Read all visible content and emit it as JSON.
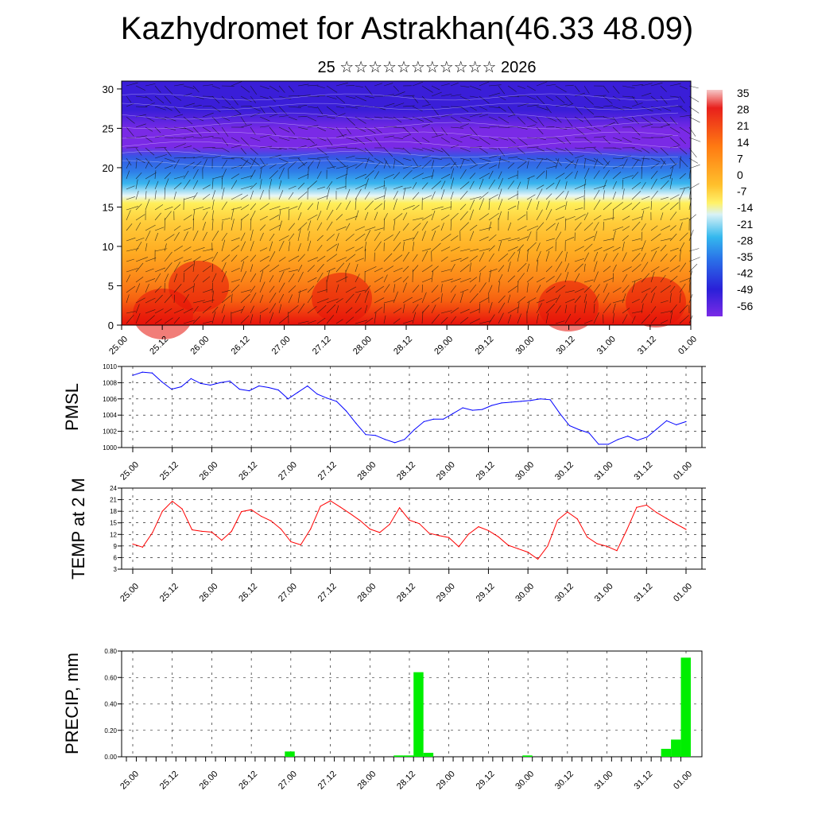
{
  "title": "Kazhydromet for Astrakhan(46.33 48.09)",
  "subtitle": "25 ☆☆☆☆☆☆☆☆☆☆☆ 2026",
  "time_labels": [
    "25.00",
    "25.12",
    "26.00",
    "26.12",
    "27.00",
    "27.12",
    "28.00",
    "28.12",
    "29.00",
    "29.12",
    "30.00",
    "30.12",
    "31.00",
    "31.12",
    "01.00"
  ],
  "chart_data": [
    {
      "type": "heatmap",
      "name": "temperature-height-section",
      "y_ticks": [
        "0",
        "5",
        "10",
        "15",
        "20",
        "25",
        "30"
      ],
      "ylim": [
        0,
        31
      ],
      "colorbar_labels": [
        "35",
        "28",
        "21",
        "14",
        "7",
        "0",
        "-7",
        "-14",
        "-21",
        "-28",
        "-35",
        "-42",
        "-49",
        "-56"
      ],
      "colors": {
        "top": "#3a1ed8",
        "band25": "#7a2ae6",
        "band20": "#2f7de8",
        "band15": "#ffef5a",
        "band10": "#ffac22",
        "band5": "#f66010",
        "bottom": "#e8100c",
        "wind": "#111111"
      }
    },
    {
      "type": "line",
      "name": "pmsl",
      "ylabel": "PMSL",
      "ylim": [
        1000,
        1010
      ],
      "y_ticks": [
        "1000",
        "1002",
        "1004",
        "1006",
        "1008",
        "1010"
      ],
      "color": "#0000ff",
      "values": [
        1008.9,
        1009.3,
        1009.2,
        1008.1,
        1007.2,
        1007.5,
        1008.5,
        1007.9,
        1007.7,
        1008.0,
        1008.2,
        1007.2,
        1007.0,
        1007.6,
        1007.4,
        1007.1,
        1006.0,
        1006.8,
        1007.6,
        1006.6,
        1006.1,
        1005.7,
        1004.5,
        1003.0,
        1001.6,
        1001.5,
        1001.0,
        1000.6,
        1001.0,
        1002.2,
        1003.2,
        1003.5,
        1003.5,
        1004.2,
        1004.9,
        1004.6,
        1004.7,
        1005.2,
        1005.5,
        1005.6,
        1005.7,
        1005.8,
        1006.0,
        1005.9,
        1004.2,
        1002.7,
        1002.2,
        1001.8,
        1000.4,
        1000.4,
        1001.0,
        1001.4,
        1000.9,
        1001.3,
        1002.3,
        1003.3,
        1002.8,
        1003.2
      ]
    },
    {
      "type": "line",
      "name": "temp-2m",
      "ylabel": "TEMP at 2 M",
      "ylim": [
        3,
        24
      ],
      "y_ticks": [
        "3",
        "6",
        "9",
        "12",
        "15",
        "18",
        "21",
        "24"
      ],
      "color": "#ff0000",
      "values": [
        9.5,
        8.7,
        12.5,
        18.0,
        20.6,
        18.6,
        13.2,
        12.8,
        12.6,
        10.5,
        12.8,
        17.9,
        18.4,
        16.7,
        15.5,
        13.4,
        10.1,
        9.3,
        13.4,
        19.3,
        20.7,
        19.1,
        17.4,
        15.6,
        13.4,
        12.5,
        14.6,
        18.9,
        15.7,
        14.8,
        12.3,
        11.7,
        11.2,
        8.8,
        12.1,
        14.0,
        13.0,
        11.4,
        9.2,
        8.3,
        7.4,
        5.6,
        9.0,
        15.7,
        17.8,
        16.0,
        11.3,
        9.6,
        8.9,
        7.8,
        13.1,
        19.0,
        19.6,
        17.7,
        16.2,
        14.7,
        13.3
      ]
    },
    {
      "type": "bar",
      "name": "precip",
      "ylabel": "PRECIP, mm",
      "ylim": [
        0,
        0.8
      ],
      "y_ticks": [
        "0.00",
        "0.20",
        "0.40",
        "0.60",
        "0.80"
      ],
      "color": "#00ee00",
      "values": [
        0,
        0,
        0,
        0,
        0,
        0,
        0,
        0,
        0,
        0,
        0,
        0,
        0,
        0,
        0,
        0,
        0.04,
        0,
        0,
        0,
        0,
        0,
        0,
        0,
        0,
        0,
        0,
        0.01,
        0.01,
        0.64,
        0.03,
        0,
        0,
        0,
        0,
        0,
        0,
        0,
        0,
        0,
        0.01,
        0,
        0,
        0,
        0,
        0,
        0,
        0,
        0,
        0,
        0,
        0,
        0,
        0,
        0.06,
        0.13,
        0.75
      ]
    }
  ]
}
